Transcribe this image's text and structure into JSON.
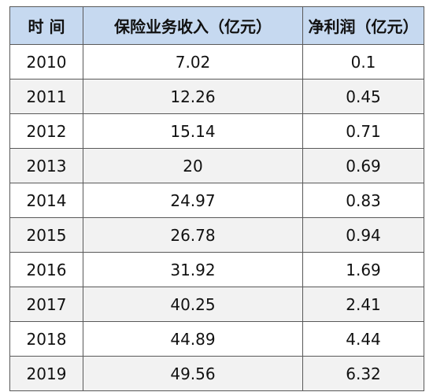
{
  "table": {
    "columns": [
      "时 间",
      "保险业务收入（亿元）",
      "净利润（亿元）"
    ],
    "rows": [
      [
        2010,
        7.02,
        0.1
      ],
      [
        2011,
        12.26,
        0.45
      ],
      [
        2012,
        15.14,
        0.71
      ],
      [
        2013,
        20,
        0.69
      ],
      [
        2014,
        24.97,
        0.83
      ],
      [
        2015,
        26.78,
        0.94
      ],
      [
        2016,
        31.92,
        1.69
      ],
      [
        2017,
        40.25,
        2.41
      ],
      [
        2018,
        44.89,
        4.44
      ],
      [
        2019,
        49.56,
        6.32
      ]
    ]
  }
}
